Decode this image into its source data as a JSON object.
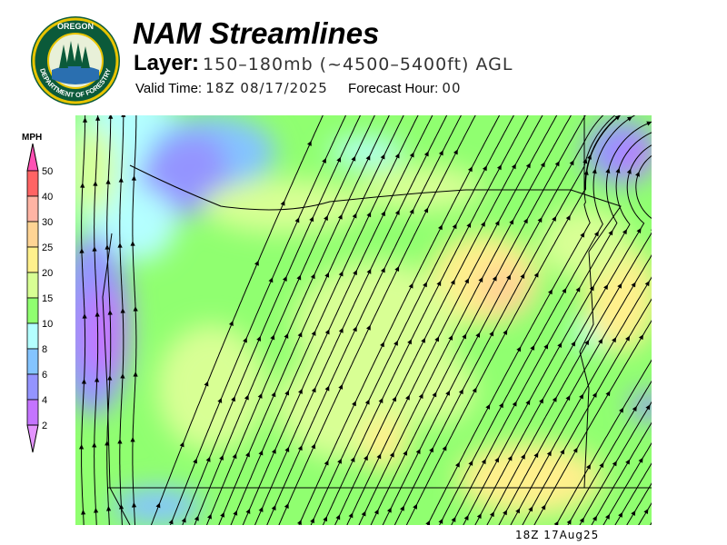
{
  "header": {
    "title": "NAM Streamlines",
    "layer_label": "Layer:",
    "layer_value": "150–180mb (~4500–5400ft) AGL",
    "valid_label": "Valid Time:",
    "valid_value": "18Z 08/17/2025",
    "forecast_label": "Forecast Hour:",
    "forecast_value": "00"
  },
  "logo": {
    "top_text": "OREGON",
    "ring_text": "DEPARTMENT OF FORESTRY"
  },
  "legend": {
    "unit": "MPH",
    "bins": [
      {
        "label": "50",
        "color": "#ff6464"
      },
      {
        "label": "40",
        "color": "#ffb4a4"
      },
      {
        "label": "30",
        "color": "#ffd494"
      },
      {
        "label": "25",
        "color": "#fff08c"
      },
      {
        "label": "20",
        "color": "#d8ff94"
      },
      {
        "label": "15",
        "color": "#90ff70"
      },
      {
        "label": "10",
        "color": "#b4ffff"
      },
      {
        "label": "8",
        "color": "#84c4ff"
      },
      {
        "label": "6",
        "color": "#9494ff"
      },
      {
        "label": "4",
        "color": "#c474ff"
      },
      {
        "label": "2",
        "color": null
      }
    ],
    "over_color": "#ff50b4",
    "under_color": "#e494ff"
  },
  "map": {
    "timestamp": "18Z 17Aug25"
  }
}
